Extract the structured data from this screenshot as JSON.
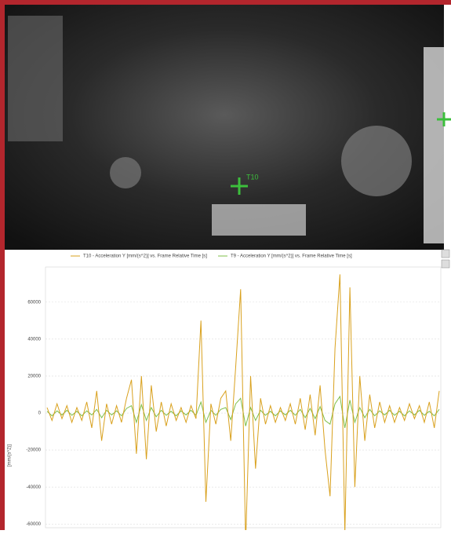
{
  "photo": {
    "markers": [
      "T10"
    ]
  },
  "chart_data": {
    "type": "line",
    "y_label": "[mm/(s^2)]",
    "series": [
      {
        "name": "T10 - Acceleration Y [mm/(s^2)] vs. Frame Relative Time [s]",
        "color": "#d9a11e",
        "values": [
          3000,
          -4000,
          5000,
          -3000,
          4000,
          -5000,
          3000,
          -4000,
          6000,
          -8000,
          12000,
          -15000,
          5000,
          -6000,
          4000,
          -5000,
          8000,
          18000,
          -22000,
          20000,
          -25000,
          15000,
          -10000,
          6000,
          -7000,
          5000,
          -4000,
          3000,
          -5000,
          4000,
          -3000,
          50000,
          -48000,
          5000,
          -6000,
          8000,
          12000,
          -15000,
          25000,
          67000,
          -70000,
          20000,
          -30000,
          8000,
          -6000,
          4000,
          -5000,
          3000,
          -4000,
          5000,
          -6000,
          8000,
          -9000,
          10000,
          -12000,
          15000,
          -20000,
          -45000,
          35000,
          75000,
          -65000,
          68000,
          -40000,
          20000,
          -15000,
          10000,
          -8000,
          6000,
          -5000,
          4000,
          -5000,
          3000,
          -4000,
          5000,
          -3000,
          4000,
          -5000,
          6000,
          -8000,
          12000
        ]
      },
      {
        "name": "T9 - Acceleration Y [mm/(s^2)] vs. Frame Relative Time [s]",
        "color": "#7fbf4a",
        "values": [
          1000,
          -1500,
          1200,
          -1000,
          1500,
          -1200,
          1000,
          -1500,
          1200,
          -1000,
          2000,
          -2500,
          1500,
          -1000,
          1200,
          -1500,
          2500,
          4000,
          -5000,
          4500,
          -4000,
          3000,
          -2000,
          1500,
          -1200,
          1000,
          -1500,
          1200,
          -1000,
          1500,
          -1200,
          6000,
          -5000,
          1500,
          -1200,
          2000,
          3000,
          -3500,
          5000,
          8000,
          -7000,
          3000,
          -4000,
          1500,
          -1200,
          1000,
          -1500,
          1200,
          -1000,
          1500,
          -1200,
          2000,
          -2500,
          2500,
          -3000,
          3500,
          -4000,
          -6000,
          5000,
          9000,
          -8000,
          7000,
          -5000,
          3000,
          -2500,
          2000,
          -1500,
          1200,
          -1000,
          1500,
          -1200,
          1000,
          -1500,
          1200,
          -1000,
          1500,
          -1200,
          1000,
          -1500,
          2000
        ]
      }
    ],
    "ylim": [
      -62000,
      79000
    ],
    "yticks": [
      -60000,
      -40000,
      -20000,
      0,
      20000,
      40000,
      60000
    ],
    "grid": true
  }
}
